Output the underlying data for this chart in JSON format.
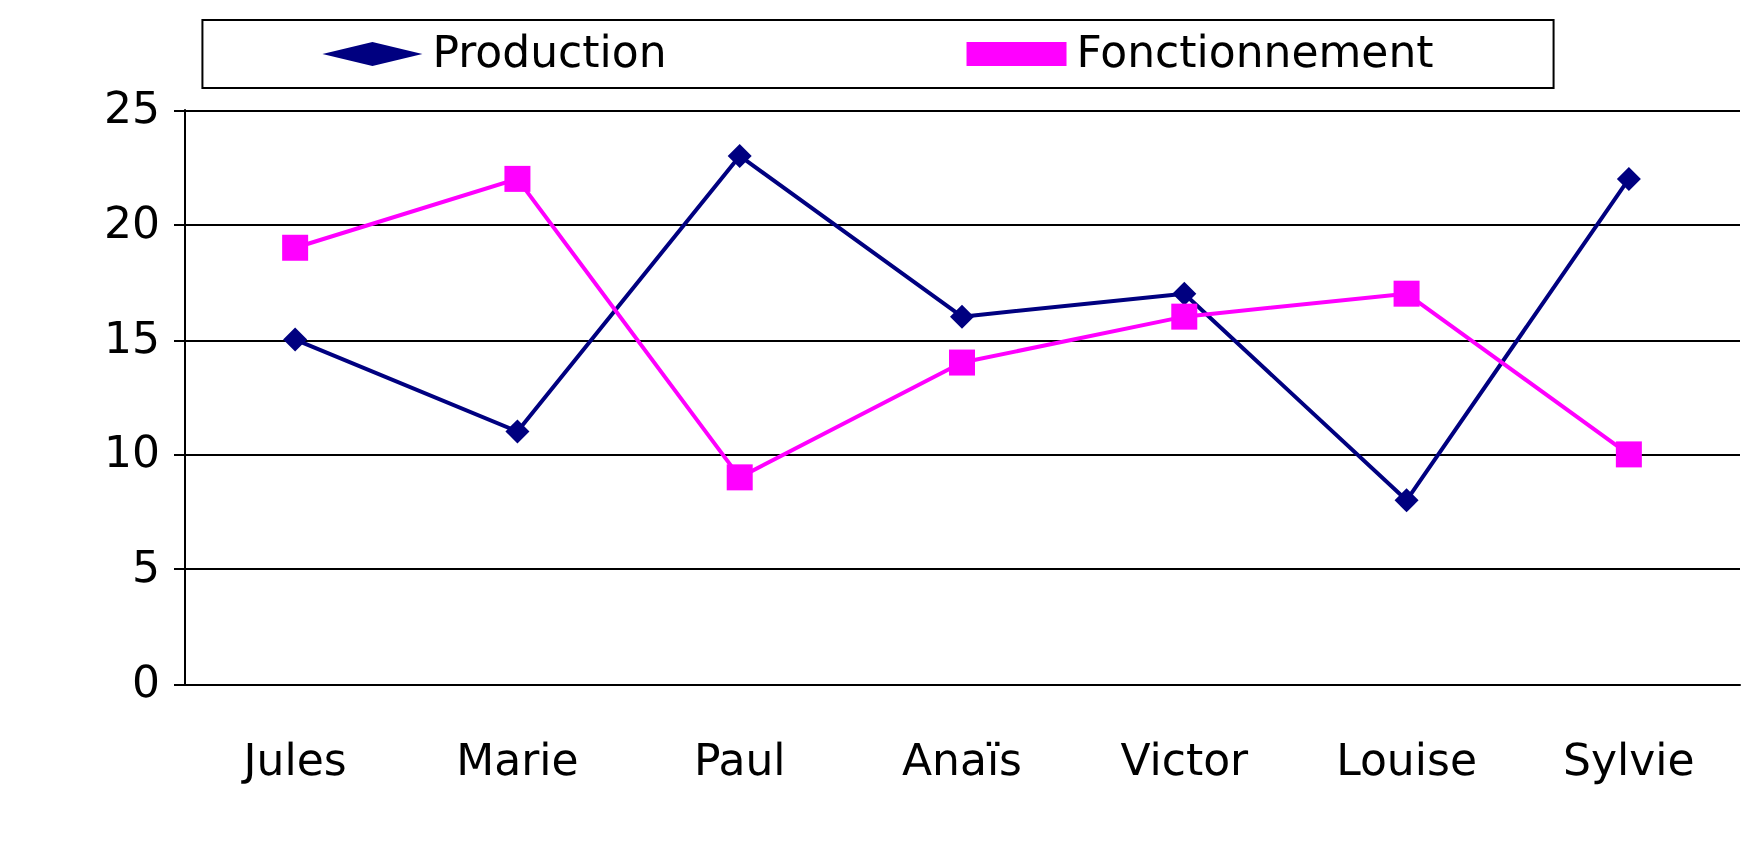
{
  "chart_data": {
    "type": "line",
    "categories": [
      "Jules",
      "Marie",
      "Paul",
      "Anaïs",
      "Victor",
      "Louise",
      "Sylvie"
    ],
    "series": [
      {
        "name": "Production",
        "color": "#000080",
        "marker": "diamond",
        "values": [
          15,
          11,
          23,
          16,
          17,
          8,
          22
        ]
      },
      {
        "name": "Fonctionnement",
        "color": "#ff00ff",
        "marker": "square",
        "values": [
          19,
          22,
          9,
          14,
          16,
          17,
          10
        ]
      }
    ],
    "ylim": [
      0,
      25
    ],
    "yticks": [
      0,
      5,
      10,
      15,
      20,
      25
    ],
    "grid": "y",
    "legend": "top"
  }
}
